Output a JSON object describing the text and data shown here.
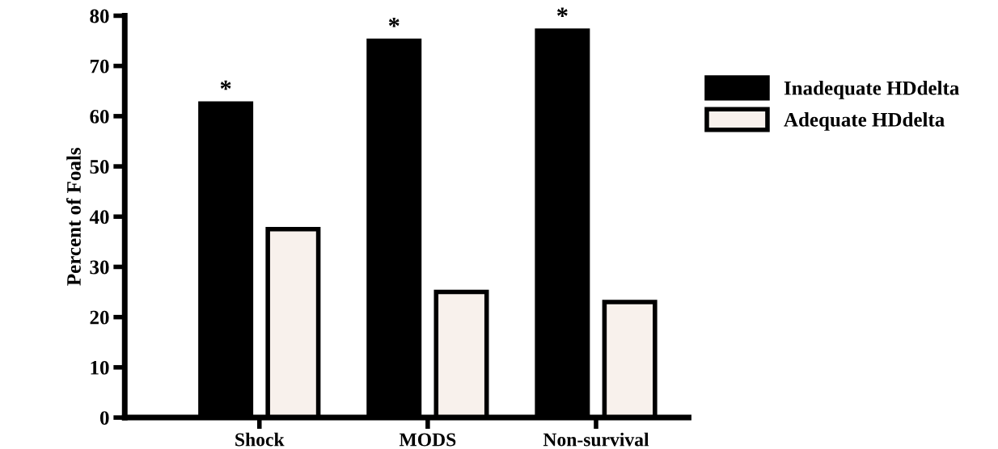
{
  "chart_data": {
    "type": "bar",
    "ylabel": "Percent of Foals",
    "categories": [
      "Shock",
      "MODS",
      "Non-survival"
    ],
    "series": [
      {
        "name": "Inadequate HDdelta",
        "color": "#000000",
        "values": [
          62.5,
          75,
          77
        ]
      },
      {
        "name": "Adequate HDdelta",
        "color": "#f8f1ec",
        "values": [
          37.5,
          25,
          23
        ]
      }
    ],
    "ylim": [
      0,
      80
    ],
    "yticks": [
      0,
      10,
      20,
      30,
      40,
      50,
      60,
      70,
      80
    ],
    "grid": false,
    "legend": "right",
    "annotations": [
      "*",
      "*",
      "*"
    ]
  }
}
